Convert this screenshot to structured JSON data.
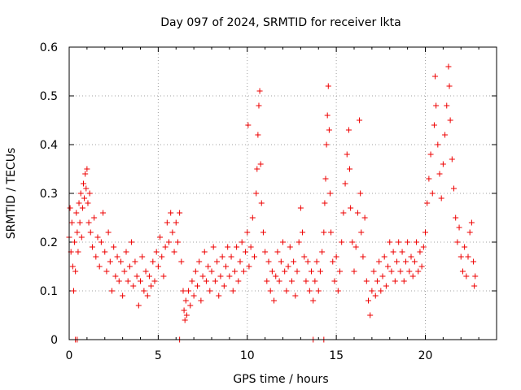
{
  "chart_data": {
    "type": "scatter",
    "title": "Day 097 of 2024, SRMTID for receiver lkta",
    "xlabel": "GPS time / hours",
    "ylabel": "SRMTID / TECUs",
    "xlim": [
      0,
      24
    ],
    "ylim": [
      0,
      0.6
    ],
    "x_ticks": [
      0,
      5,
      10,
      15,
      20
    ],
    "x_tick_labels": [
      "0",
      "5",
      "10",
      "15",
      "20"
    ],
    "y_ticks": [
      0,
      0.1,
      0.2,
      0.3,
      0.4,
      0.5,
      0.6
    ],
    "y_tick_labels": [
      "0",
      "0.1",
      "0.2",
      "0.3",
      "0.4",
      "0.5",
      "0.6"
    ],
    "grid": true,
    "marker": "plus",
    "color": "#ee0000",
    "series": [
      {
        "name": "SRMTID",
        "points": [
          [
            0.0,
            0.21
          ],
          [
            0.05,
            0.27
          ],
          [
            0.1,
            0.18
          ],
          [
            0.15,
            0.24
          ],
          [
            0.2,
            0.15
          ],
          [
            0.25,
            0.1
          ],
          [
            0.3,
            0.2
          ],
          [
            0.35,
            0.14
          ],
          [
            0.4,
            0.26
          ],
          [
            0.45,
            0.22
          ],
          [
            0.5,
            0.18
          ],
          [
            0.55,
            0.28
          ],
          [
            0.6,
            0.24
          ],
          [
            0.65,
            0.3
          ],
          [
            0.7,
            0.21
          ],
          [
            0.75,
            0.27
          ],
          [
            0.8,
            0.32
          ],
          [
            0.85,
            0.29
          ],
          [
            0.9,
            0.34
          ],
          [
            0.95,
            0.31
          ],
          [
            1.0,
            0.35
          ],
          [
            1.05,
            0.28
          ],
          [
            1.1,
            0.24
          ],
          [
            1.15,
            0.3
          ],
          [
            1.2,
            0.22
          ],
          [
            1.3,
            0.19
          ],
          [
            1.4,
            0.25
          ],
          [
            1.5,
            0.17
          ],
          [
            1.6,
            0.21
          ],
          [
            1.7,
            0.15
          ],
          [
            1.8,
            0.2
          ],
          [
            1.9,
            0.26
          ],
          [
            2.0,
            0.18
          ],
          [
            2.1,
            0.14
          ],
          [
            2.2,
            0.22
          ],
          [
            2.3,
            0.16
          ],
          [
            2.4,
            0.1
          ],
          [
            2.5,
            0.19
          ],
          [
            2.6,
            0.13
          ],
          [
            2.7,
            0.17
          ],
          [
            2.8,
            0.12
          ],
          [
            2.9,
            0.16
          ],
          [
            3.0,
            0.09
          ],
          [
            3.1,
            0.14
          ],
          [
            3.2,
            0.18
          ],
          [
            3.3,
            0.12
          ],
          [
            3.4,
            0.15
          ],
          [
            3.5,
            0.2
          ],
          [
            3.6,
            0.11
          ],
          [
            3.7,
            0.16
          ],
          [
            3.8,
            0.13
          ],
          [
            3.9,
            0.07
          ],
          [
            4.0,
            0.12
          ],
          [
            4.1,
            0.17
          ],
          [
            4.2,
            0.1
          ],
          [
            4.3,
            0.14
          ],
          [
            4.4,
            0.09
          ],
          [
            4.5,
            0.13
          ],
          [
            4.6,
            0.11
          ],
          [
            4.7,
            0.16
          ],
          [
            4.8,
            0.12
          ],
          [
            4.9,
            0.18
          ],
          [
            5.0,
            0.15
          ],
          [
            5.1,
            0.21
          ],
          [
            5.2,
            0.17
          ],
          [
            5.3,
            0.13
          ],
          [
            5.4,
            0.19
          ],
          [
            5.5,
            0.24
          ],
          [
            5.6,
            0.2
          ],
          [
            5.7,
            0.26
          ],
          [
            5.8,
            0.22
          ],
          [
            5.9,
            0.18
          ],
          [
            6.0,
            0.24
          ],
          [
            6.1,
            0.2
          ],
          [
            6.2,
            0.26
          ],
          [
            6.3,
            0.16
          ],
          [
            6.4,
            0.1
          ],
          [
            6.45,
            0.06
          ],
          [
            6.5,
            0.04
          ],
          [
            6.55,
            0.08
          ],
          [
            6.6,
            0.05
          ],
          [
            6.7,
            0.1
          ],
          [
            6.8,
            0.07
          ],
          [
            6.9,
            0.12
          ],
          [
            7.0,
            0.09
          ],
          [
            7.1,
            0.14
          ],
          [
            7.2,
            0.11
          ],
          [
            7.3,
            0.16
          ],
          [
            7.4,
            0.08
          ],
          [
            7.5,
            0.13
          ],
          [
            7.6,
            0.18
          ],
          [
            7.7,
            0.12
          ],
          [
            7.8,
            0.15
          ],
          [
            7.9,
            0.1
          ],
          [
            8.0,
            0.14
          ],
          [
            8.1,
            0.19
          ],
          [
            8.2,
            0.12
          ],
          [
            8.3,
            0.16
          ],
          [
            8.4,
            0.09
          ],
          [
            8.5,
            0.13
          ],
          [
            8.6,
            0.17
          ],
          [
            8.7,
            0.11
          ],
          [
            8.8,
            0.15
          ],
          [
            8.9,
            0.19
          ],
          [
            9.0,
            0.13
          ],
          [
            9.1,
            0.17
          ],
          [
            9.2,
            0.1
          ],
          [
            9.3,
            0.14
          ],
          [
            9.4,
            0.19
          ],
          [
            9.5,
            0.12
          ],
          [
            9.6,
            0.16
          ],
          [
            9.7,
            0.2
          ],
          [
            9.8,
            0.14
          ],
          [
            9.9,
            0.18
          ],
          [
            10.0,
            0.22
          ],
          [
            10.05,
            0.44
          ],
          [
            10.1,
            0.15
          ],
          [
            10.2,
            0.19
          ],
          [
            10.3,
            0.25
          ],
          [
            10.4,
            0.17
          ],
          [
            10.5,
            0.3
          ],
          [
            10.55,
            0.35
          ],
          [
            10.6,
            0.42
          ],
          [
            10.65,
            0.48
          ],
          [
            10.7,
            0.51
          ],
          [
            10.75,
            0.36
          ],
          [
            10.8,
            0.28
          ],
          [
            10.9,
            0.22
          ],
          [
            11.0,
            0.18
          ],
          [
            11.1,
            0.12
          ],
          [
            11.2,
            0.16
          ],
          [
            11.3,
            0.1
          ],
          [
            11.4,
            0.14
          ],
          [
            11.5,
            0.08
          ],
          [
            11.6,
            0.13
          ],
          [
            11.7,
            0.18
          ],
          [
            11.8,
            0.12
          ],
          [
            11.9,
            0.16
          ],
          [
            12.0,
            0.2
          ],
          [
            12.1,
            0.14
          ],
          [
            12.2,
            0.1
          ],
          [
            12.3,
            0.15
          ],
          [
            12.4,
            0.19
          ],
          [
            12.5,
            0.12
          ],
          [
            12.6,
            0.16
          ],
          [
            12.7,
            0.09
          ],
          [
            12.8,
            0.14
          ],
          [
            12.9,
            0.2
          ],
          [
            13.0,
            0.27
          ],
          [
            13.1,
            0.22
          ],
          [
            13.2,
            0.17
          ],
          [
            13.3,
            0.12
          ],
          [
            13.4,
            0.16
          ],
          [
            13.5,
            0.1
          ],
          [
            13.6,
            0.14
          ],
          [
            13.7,
            0.08
          ],
          [
            13.8,
            0.12
          ],
          [
            13.9,
            0.16
          ],
          [
            14.0,
            0.1
          ],
          [
            14.1,
            0.14
          ],
          [
            14.2,
            0.18
          ],
          [
            14.3,
            0.22
          ],
          [
            14.35,
            0.28
          ],
          [
            14.4,
            0.33
          ],
          [
            14.45,
            0.4
          ],
          [
            14.5,
            0.46
          ],
          [
            14.55,
            0.52
          ],
          [
            14.6,
            0.43
          ],
          [
            14.65,
            0.3
          ],
          [
            14.7,
            0.22
          ],
          [
            14.8,
            0.16
          ],
          [
            14.9,
            0.12
          ],
          [
            15.0,
            0.17
          ],
          [
            15.1,
            0.1
          ],
          [
            15.2,
            0.14
          ],
          [
            15.3,
            0.2
          ],
          [
            15.4,
            0.26
          ],
          [
            15.5,
            0.32
          ],
          [
            15.6,
            0.38
          ],
          [
            15.7,
            0.43
          ],
          [
            15.75,
            0.35
          ],
          [
            15.8,
            0.27
          ],
          [
            15.9,
            0.2
          ],
          [
            16.0,
            0.14
          ],
          [
            16.1,
            0.19
          ],
          [
            16.2,
            0.26
          ],
          [
            16.3,
            0.45
          ],
          [
            16.35,
            0.3
          ],
          [
            16.4,
            0.22
          ],
          [
            16.5,
            0.17
          ],
          [
            16.6,
            0.25
          ],
          [
            16.7,
            0.12
          ],
          [
            16.8,
            0.08
          ],
          [
            16.9,
            0.05
          ],
          [
            17.0,
            0.1
          ],
          [
            17.1,
            0.14
          ],
          [
            17.2,
            0.09
          ],
          [
            17.3,
            0.12
          ],
          [
            17.4,
            0.16
          ],
          [
            17.5,
            0.1
          ],
          [
            17.6,
            0.13
          ],
          [
            17.7,
            0.17
          ],
          [
            17.8,
            0.11
          ],
          [
            17.9,
            0.15
          ],
          [
            18.0,
            0.2
          ],
          [
            18.1,
            0.14
          ],
          [
            18.2,
            0.18
          ],
          [
            18.3,
            0.12
          ],
          [
            18.4,
            0.16
          ],
          [
            18.5,
            0.2
          ],
          [
            18.6,
            0.14
          ],
          [
            18.7,
            0.18
          ],
          [
            18.8,
            0.12
          ],
          [
            18.9,
            0.16
          ],
          [
            19.0,
            0.2
          ],
          [
            19.1,
            0.14
          ],
          [
            19.2,
            0.17
          ],
          [
            19.3,
            0.13
          ],
          [
            19.4,
            0.16
          ],
          [
            19.5,
            0.2
          ],
          [
            19.6,
            0.14
          ],
          [
            19.7,
            0.18
          ],
          [
            19.8,
            0.15
          ],
          [
            19.9,
            0.19
          ],
          [
            20.0,
            0.22
          ],
          [
            20.1,
            0.28
          ],
          [
            20.2,
            0.33
          ],
          [
            20.3,
            0.38
          ],
          [
            20.4,
            0.3
          ],
          [
            20.5,
            0.44
          ],
          [
            20.55,
            0.54
          ],
          [
            20.6,
            0.48
          ],
          [
            20.7,
            0.4
          ],
          [
            20.8,
            0.34
          ],
          [
            20.9,
            0.29
          ],
          [
            21.0,
            0.36
          ],
          [
            21.1,
            0.42
          ],
          [
            21.2,
            0.48
          ],
          [
            21.3,
            0.56
          ],
          [
            21.35,
            0.52
          ],
          [
            21.4,
            0.45
          ],
          [
            21.5,
            0.37
          ],
          [
            21.6,
            0.31
          ],
          [
            21.7,
            0.25
          ],
          [
            21.8,
            0.2
          ],
          [
            21.9,
            0.23
          ],
          [
            22.0,
            0.17
          ],
          [
            22.1,
            0.14
          ],
          [
            22.2,
            0.19
          ],
          [
            22.3,
            0.13
          ],
          [
            22.4,
            0.17
          ],
          [
            22.5,
            0.22
          ],
          [
            22.6,
            0.24
          ],
          [
            22.7,
            0.16
          ],
          [
            22.75,
            0.11
          ],
          [
            22.8,
            0.13
          ],
          [
            0.35,
            0.0
          ],
          [
            0.45,
            0.0
          ],
          [
            6.2,
            0.0
          ],
          [
            13.7,
            0.0
          ],
          [
            14.3,
            0.0
          ]
        ]
      }
    ]
  }
}
